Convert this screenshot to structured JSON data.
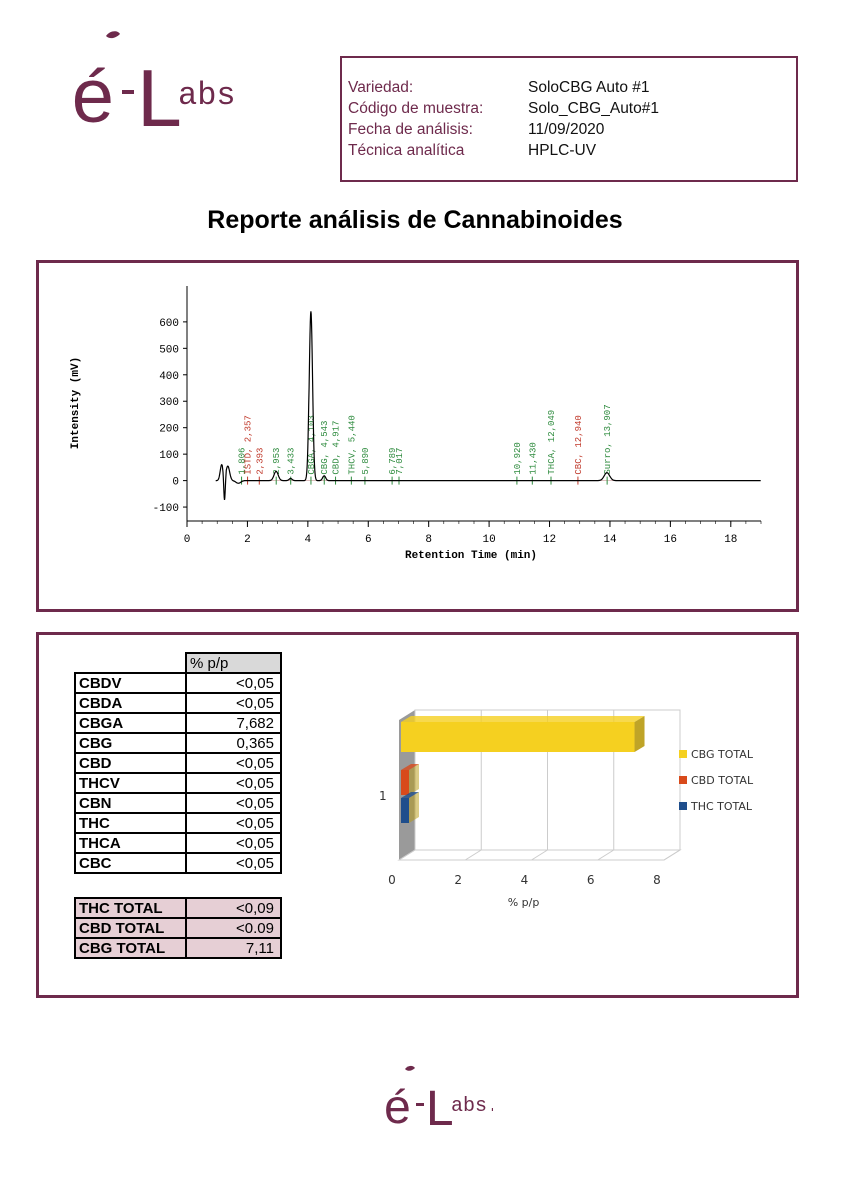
{
  "logo": {
    "text": "é-Labs."
  },
  "sample_info": {
    "rows": [
      {
        "label": "Variedad:",
        "value": "SoloCBG Auto #1"
      },
      {
        "label": "Código de muestra:",
        "value": "Solo_CBG_Auto#1"
      },
      {
        "label": "Fecha de análisis:",
        "value": "11/09/2020"
      },
      {
        "label": "Técnica analítica",
        "value": "HPLC-UV"
      }
    ]
  },
  "title": "Reporte análisis de Cannabinoides",
  "colors": {
    "brand": "#6e2a4c",
    "cbg_total": "#f5d020",
    "cbd_total": "#d84a1b",
    "thc_total": "#1f4e8c"
  },
  "chromatogram": {
    "type": "line",
    "xlabel": "Retention Time (min)",
    "ylabel": "Intensity (mV)",
    "xlim": [
      0,
      19
    ],
    "ylim": [
      -130,
      660
    ],
    "xticks": [
      "0",
      "2",
      "4",
      "6",
      "8",
      "10",
      "12",
      "14",
      "16",
      "18"
    ],
    "yticks": [
      "-100",
      "0",
      "100",
      "200",
      "300",
      "400",
      "500",
      "600"
    ],
    "peak_labels": [
      {
        "x": 1.806,
        "text": "1,806",
        "color": "green"
      },
      {
        "x": 2.005,
        "text": "ISTD, 2,357",
        "color": "red"
      },
      {
        "x": 2.393,
        "text": "2,393",
        "color": "red"
      },
      {
        "x": 2.953,
        "text": "2,953",
        "color": "green"
      },
      {
        "x": 3.433,
        "text": "3,433",
        "color": "green"
      },
      {
        "x": 4.103,
        "text": "CBGA, 4,103",
        "color": "green"
      },
      {
        "x": 4.543,
        "text": "CBG, 4,543",
        "color": "green"
      },
      {
        "x": 4.917,
        "text": "CBD, 4,917",
        "color": "green"
      },
      {
        "x": 5.44,
        "text": "THCV, 5,440",
        "color": "green"
      },
      {
        "x": 5.89,
        "text": "5,890",
        "color": "green"
      },
      {
        "x": 6.789,
        "text": "6,789",
        "color": "green"
      },
      {
        "x": 7.017,
        "text": "7,017",
        "color": "green"
      },
      {
        "x": 10.92,
        "text": "10,920",
        "color": "green"
      },
      {
        "x": 11.43,
        "text": "11,430",
        "color": "green"
      },
      {
        "x": 12.049,
        "text": "THCA, 12,049",
        "color": "green"
      },
      {
        "x": 12.94,
        "text": "CBC, 12,940",
        "color": "red"
      },
      {
        "x": 13.907,
        "text": "Surro, 13,907",
        "color": "green"
      }
    ]
  },
  "results": {
    "header": "% p/p",
    "rows": [
      {
        "name": "CBDV",
        "value": "<0,05"
      },
      {
        "name": "CBDA",
        "value": "<0,05"
      },
      {
        "name": "CBGA",
        "value": "7,682"
      },
      {
        "name": "CBG",
        "value": "0,365"
      },
      {
        "name": "CBD",
        "value": "<0,05"
      },
      {
        "name": "THCV",
        "value": "<0,05"
      },
      {
        "name": "CBN",
        "value": "<0,05"
      },
      {
        "name": "THC",
        "value": "<0,05"
      },
      {
        "name": "THCA",
        "value": "<0,05"
      },
      {
        "name": "CBC",
        "value": "<0,05"
      }
    ],
    "totals": [
      {
        "name": "THC TOTAL",
        "value": "<0,09"
      },
      {
        "name": "CBD TOTAL",
        "value": "<0.09"
      },
      {
        "name": "CBG TOTAL",
        "value": "7,11"
      }
    ]
  },
  "chart_data": {
    "type": "bar",
    "orientation": "horizontal",
    "categories": [
      "1"
    ],
    "series": [
      {
        "name": "CBG TOTAL",
        "values": [
          7.11
        ]
      },
      {
        "name": "CBD TOTAL",
        "values": [
          0.09
        ]
      },
      {
        "name": "THC TOTAL",
        "values": [
          0.09
        ]
      }
    ],
    "xlabel": "% p/p",
    "xlim": [
      0,
      8
    ],
    "xticks": [
      "0",
      "2",
      "4",
      "6",
      "8"
    ],
    "legend": "right"
  }
}
